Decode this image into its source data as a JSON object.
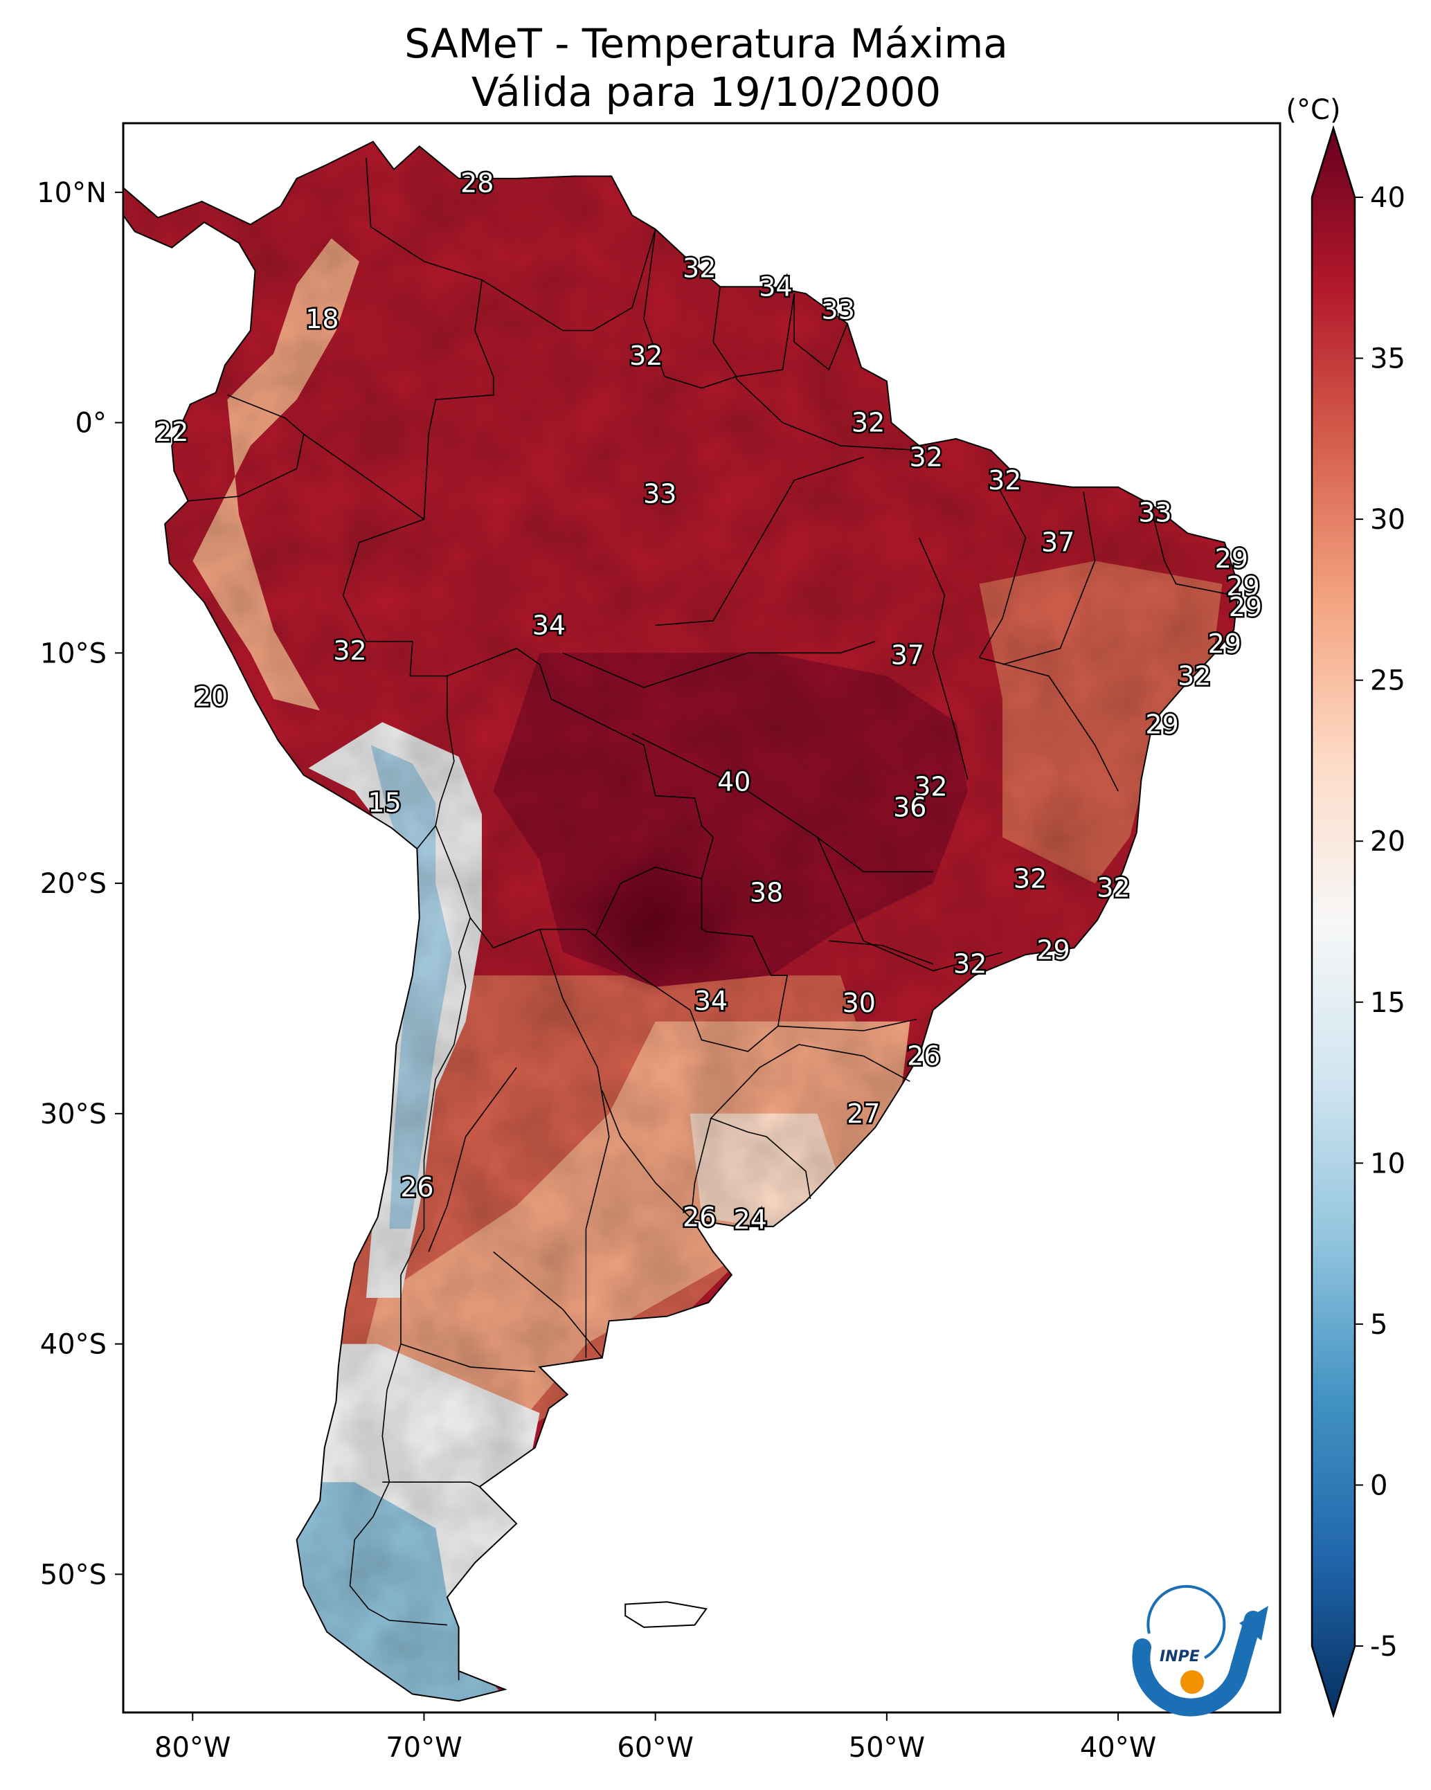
{
  "title": {
    "line1": "SAMeT - Temperatura Máxima",
    "line2": "Válida para 19/10/2000"
  },
  "map": {
    "lon_range": [
      -83,
      -33
    ],
    "lat_range": [
      -56,
      13
    ]
  },
  "axes": {
    "lon_ticks": [
      {
        "lon": -80,
        "label": "80°W"
      },
      {
        "lon": -70,
        "label": "70°W"
      },
      {
        "lon": -60,
        "label": "60°W"
      },
      {
        "lon": -50,
        "label": "50°W"
      },
      {
        "lon": -40,
        "label": "40°W"
      }
    ],
    "lat_ticks": [
      {
        "lat": 10,
        "label": "10°N"
      },
      {
        "lat": 0,
        "label": "0°"
      },
      {
        "lat": -10,
        "label": "10°S"
      },
      {
        "lat": -20,
        "label": "20°S"
      },
      {
        "lat": -30,
        "label": "30°S"
      },
      {
        "lat": -40,
        "label": "40°S"
      },
      {
        "lat": -50,
        "label": "50°S"
      }
    ]
  },
  "colorbar": {
    "unit": "(°C)",
    "min": -7,
    "max": 42,
    "ticks": [
      {
        "value": 40,
        "label": "40"
      },
      {
        "value": 35,
        "label": "35"
      },
      {
        "value": 30,
        "label": "30"
      },
      {
        "value": 25,
        "label": "25"
      },
      {
        "value": 20,
        "label": "20"
      },
      {
        "value": 15,
        "label": "15"
      },
      {
        "value": 10,
        "label": "10"
      },
      {
        "value": 5,
        "label": "5"
      },
      {
        "value": 0,
        "label": "0"
      },
      {
        "value": -5,
        "label": "-5"
      }
    ],
    "colors": [
      "#053061",
      "#2166ac",
      "#4393c3",
      "#92c5de",
      "#d1e5f0",
      "#f7f7f7",
      "#fddbc7",
      "#f4a582",
      "#d6604d",
      "#b2182b",
      "#67001f"
    ]
  },
  "values": [
    {
      "lon": -67.7,
      "lat": 10.4,
      "text": "28"
    },
    {
      "lon": -74.4,
      "lat": 4.5,
      "text": "18"
    },
    {
      "lon": -80.9,
      "lat": -0.4,
      "text": "22"
    },
    {
      "lon": -58.1,
      "lat": 6.7,
      "text": "32"
    },
    {
      "lon": -54.8,
      "lat": 5.9,
      "text": "34"
    },
    {
      "lon": -52.1,
      "lat": 4.9,
      "text": "33"
    },
    {
      "lon": -60.4,
      "lat": 2.9,
      "text": "32"
    },
    {
      "lon": -50.8,
      "lat": 0.0,
      "text": "32"
    },
    {
      "lon": -48.3,
      "lat": -1.5,
      "text": "32"
    },
    {
      "lon": -59.8,
      "lat": -3.1,
      "text": "33"
    },
    {
      "lon": -44.9,
      "lat": -2.5,
      "text": "32"
    },
    {
      "lon": -42.6,
      "lat": -5.2,
      "text": "37"
    },
    {
      "lon": -38.4,
      "lat": -3.9,
      "text": "33"
    },
    {
      "lon": -35.1,
      "lat": -5.9,
      "text": "29"
    },
    {
      "lon": -34.6,
      "lat": -7.1,
      "text": "29"
    },
    {
      "lon": -34.5,
      "lat": -8.0,
      "text": "29"
    },
    {
      "lon": -35.4,
      "lat": -9.6,
      "text": "29"
    },
    {
      "lon": -36.7,
      "lat": -11.0,
      "text": "32"
    },
    {
      "lon": -38.1,
      "lat": -13.1,
      "text": "29"
    },
    {
      "lon": -64.6,
      "lat": -8.8,
      "text": "34"
    },
    {
      "lon": -73.2,
      "lat": -9.9,
      "text": "32"
    },
    {
      "lon": -49.1,
      "lat": -10.1,
      "text": "37"
    },
    {
      "lon": -79.2,
      "lat": -11.9,
      "text": "20"
    },
    {
      "lon": -71.7,
      "lat": -16.5,
      "text": "15"
    },
    {
      "lon": -56.6,
      "lat": -15.6,
      "text": "40"
    },
    {
      "lon": -48.1,
      "lat": -15.8,
      "text": "32"
    },
    {
      "lon": -49.0,
      "lat": -16.7,
      "text": "36"
    },
    {
      "lon": -55.2,
      "lat": -20.4,
      "text": "38"
    },
    {
      "lon": -43.8,
      "lat": -19.8,
      "text": "32"
    },
    {
      "lon": -40.2,
      "lat": -20.2,
      "text": "32"
    },
    {
      "lon": -42.8,
      "lat": -22.9,
      "text": "29"
    },
    {
      "lon": -46.4,
      "lat": -23.5,
      "text": "32"
    },
    {
      "lon": -57.6,
      "lat": -25.1,
      "text": "34"
    },
    {
      "lon": -51.2,
      "lat": -25.2,
      "text": "30"
    },
    {
      "lon": -48.4,
      "lat": -27.5,
      "text": "26"
    },
    {
      "lon": -51.0,
      "lat": -30.0,
      "text": "27"
    },
    {
      "lon": -70.3,
      "lat": -33.2,
      "text": "26"
    },
    {
      "lon": -58.1,
      "lat": -34.5,
      "text": "26"
    },
    {
      "lon": -55.9,
      "lat": -34.6,
      "text": "24"
    }
  ],
  "logo": {
    "text": "INPE",
    "icon": "inpe-logo-icon"
  }
}
